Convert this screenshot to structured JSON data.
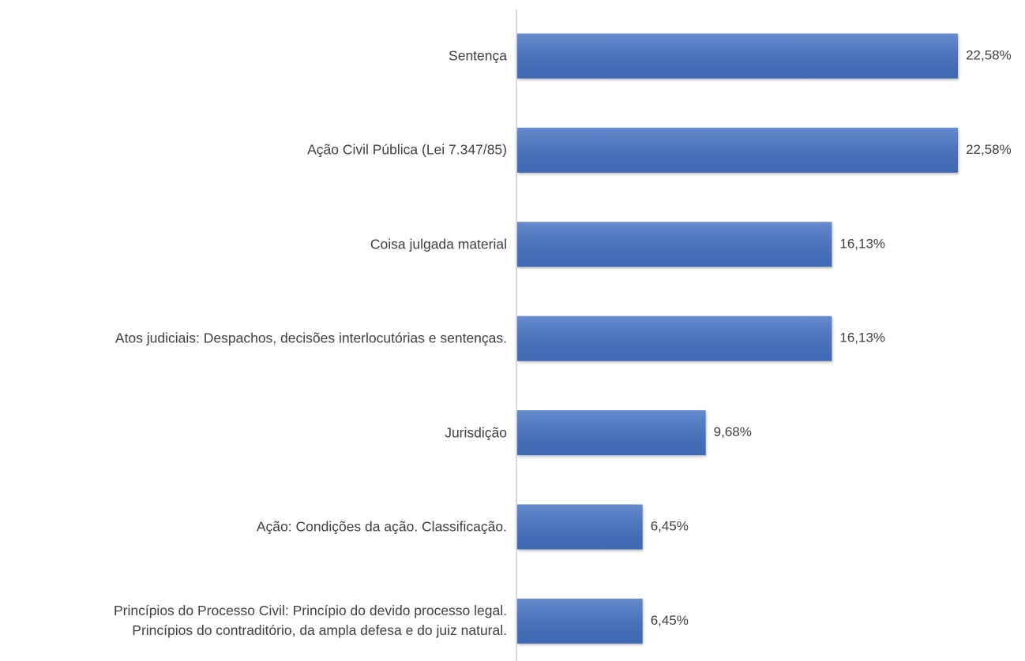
{
  "chart_data": {
    "type": "hbar",
    "categories": [
      "Sentença",
      "Ação Civil Pública (Lei 7.347/85)",
      "Coisa julgada material",
      "Atos judiciais: Despachos, decisões interlocutórias e sentenças.",
      "Jurisdição",
      "Ação: Condições da ação. Classificação.",
      "Princípios do Processo Civil: Princípio do devido processo legal.\nPrincípios do contraditório, da ampla defesa e do juiz natural."
    ],
    "values": [
      22.58,
      22.58,
      16.13,
      16.13,
      9.68,
      6.45,
      6.45
    ],
    "value_labels": [
      "22,58%",
      "22,58%",
      "16,13%",
      "16,13%",
      "9,68%",
      "6,45%",
      "6,45%"
    ],
    "color": "#4472c4"
  }
}
